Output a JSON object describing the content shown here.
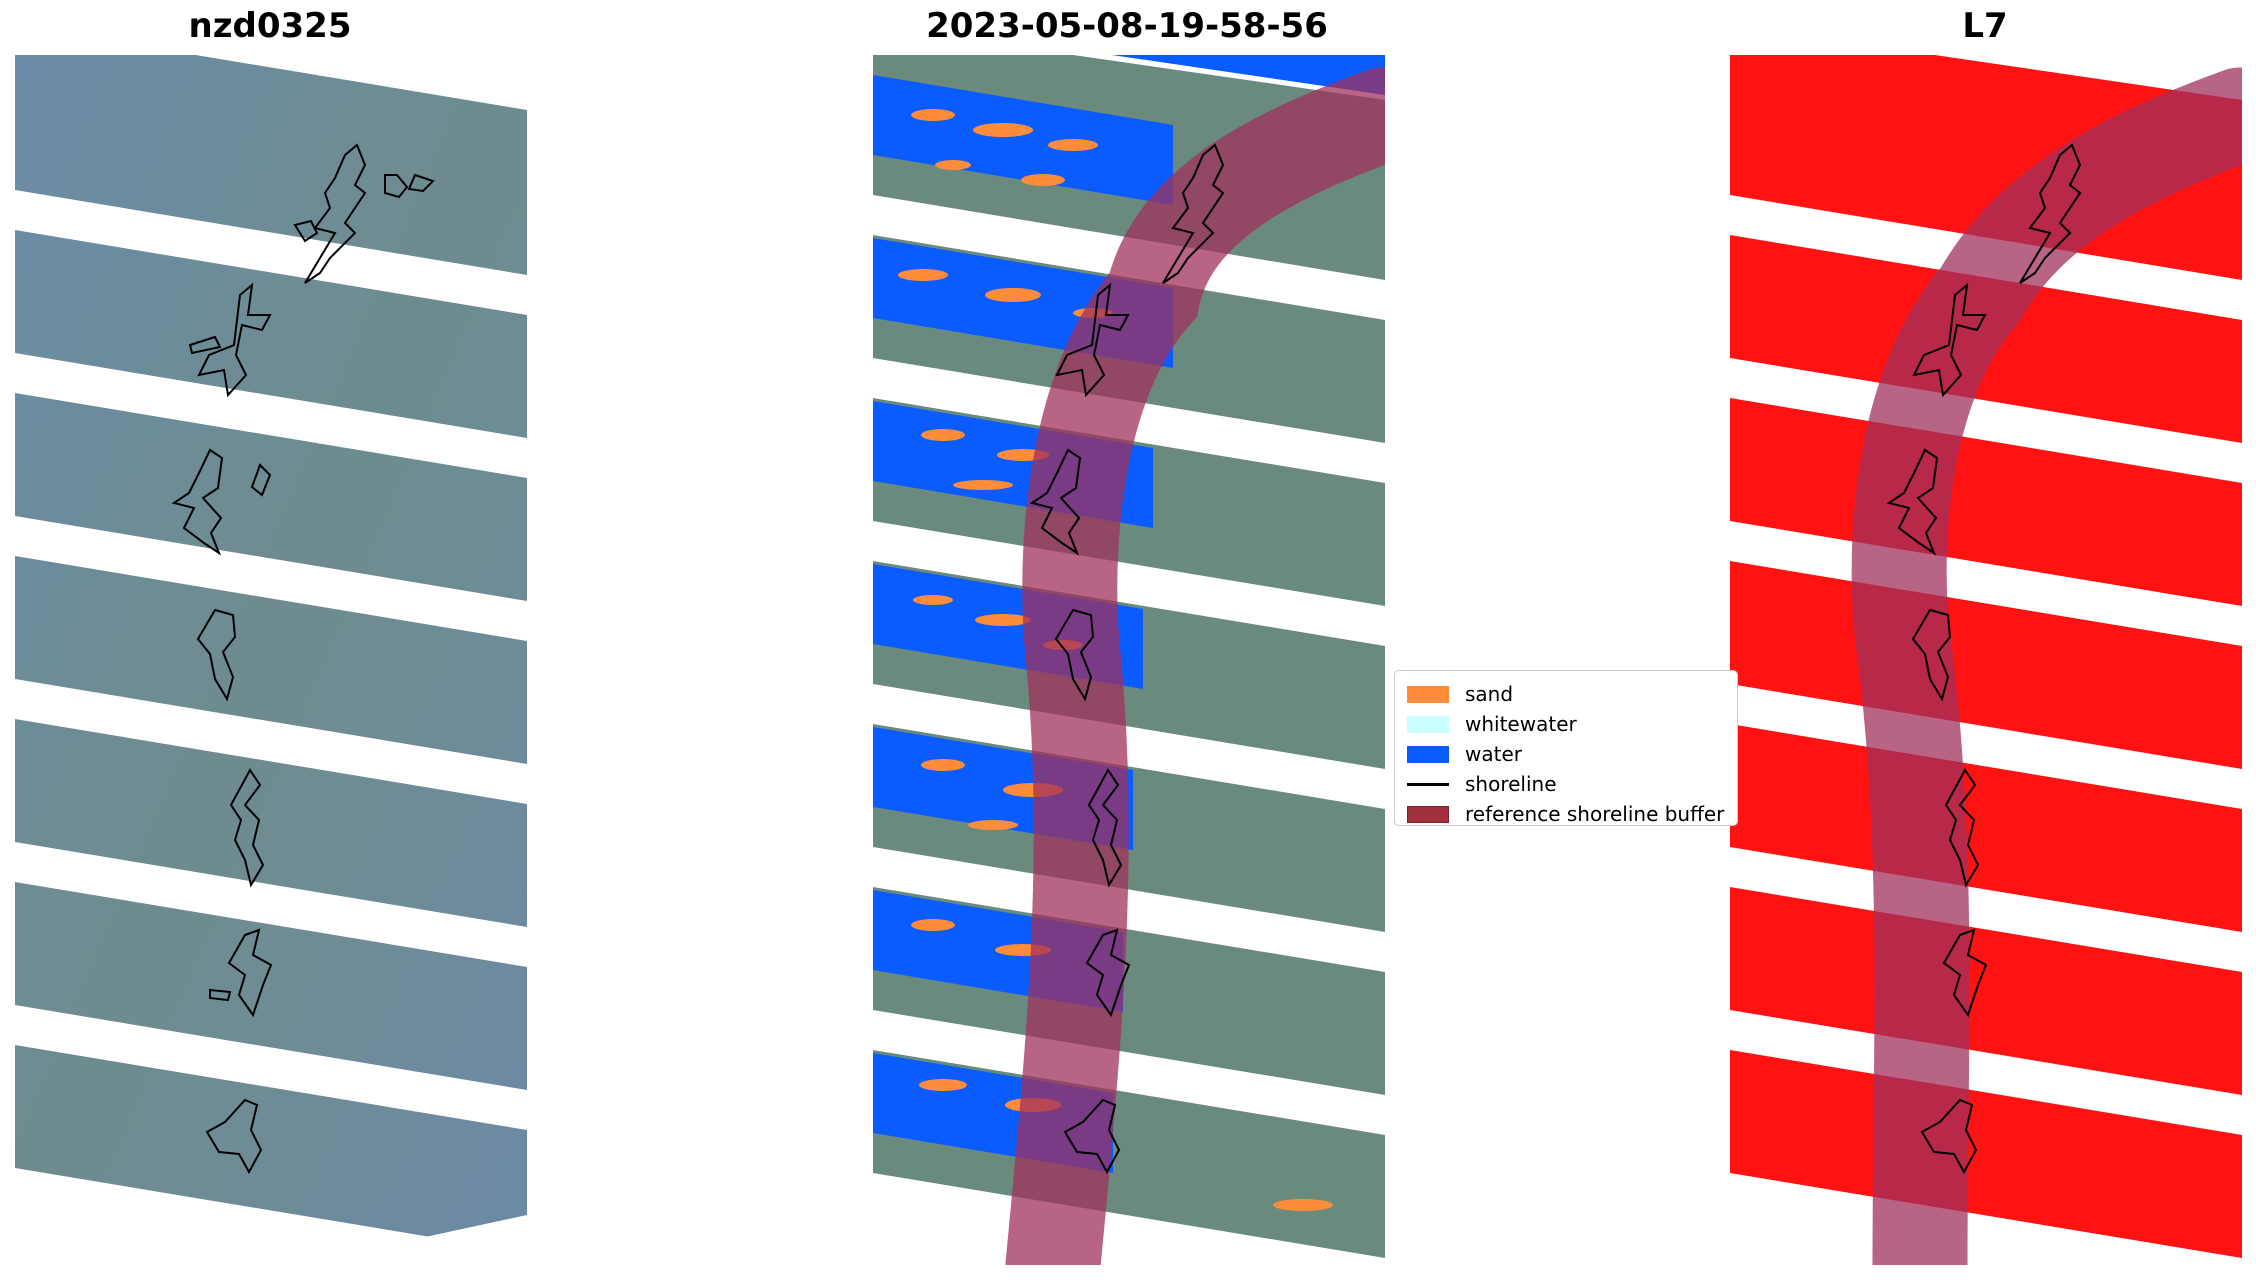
{
  "panels": [
    {
      "title": "nzd0325"
    },
    {
      "title": "2023-05-08-19-58-56"
    },
    {
      "title": "L7"
    }
  ],
  "legend": {
    "items": [
      {
        "label": "sand",
        "color": "#ff8c3a",
        "kind": "patch"
      },
      {
        "label": "whitewater",
        "color": "#ccffff",
        "kind": "patch"
      },
      {
        "label": "water",
        "color": "#0a5cff",
        "kind": "patch"
      },
      {
        "label": "shoreline",
        "color": "#000000",
        "kind": "line"
      },
      {
        "label": "reference shoreline buffer",
        "color": "#a0303c",
        "kind": "patch"
      }
    ]
  },
  "colors": {
    "imagery": "#6f8ea6",
    "imagery_green": "#5f8373",
    "stripe_gap": "#ffffff",
    "mask_red": "#ff1212",
    "buffer": "#a0305c"
  }
}
